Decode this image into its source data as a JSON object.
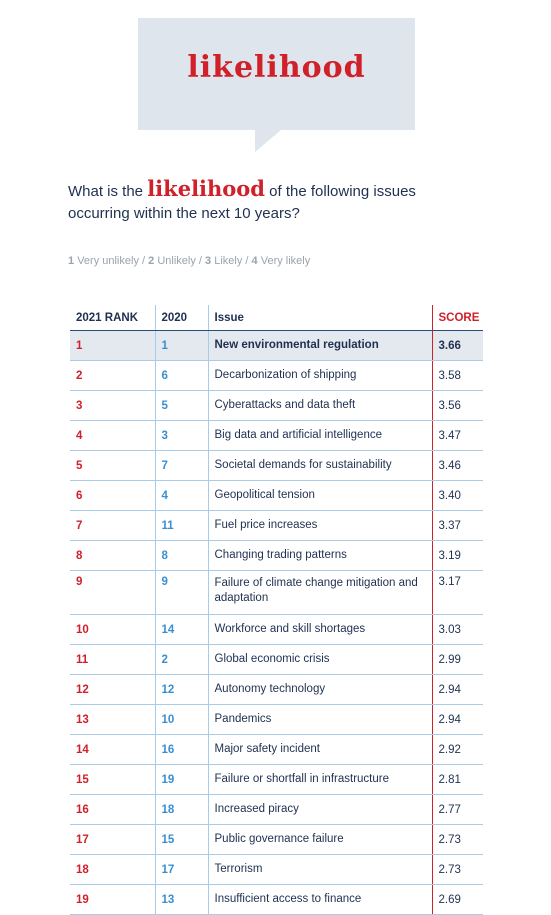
{
  "banner": {
    "title": "likelihood"
  },
  "question": {
    "before": "What is the",
    "highlight": "likelihood",
    "after": "of the following issues occurring within the next 10 years?"
  },
  "scale": {
    "separator": "/",
    "items": [
      {
        "num": "1",
        "label": "Very unlikely"
      },
      {
        "num": "2",
        "label": "Unlikely"
      },
      {
        "num": "3",
        "label": "Likely"
      },
      {
        "num": "4",
        "label": "Very likely"
      }
    ]
  },
  "table": {
    "header": [
      "2021 RANK",
      "2020",
      "Issue",
      "SCORE"
    ],
    "rows": [
      [
        "1",
        "1",
        "New environmental regulation",
        "3.66"
      ],
      [
        "2",
        "6",
        "Decarbonization of shipping",
        "3.58"
      ],
      [
        "3",
        "5",
        "Cyberattacks and data theft",
        "3.56"
      ],
      [
        "4",
        "3",
        "Big data and artificial intelligence",
        "3.47"
      ],
      [
        "5",
        "7",
        "Societal demands for sustainability",
        "3.46"
      ],
      [
        "6",
        "4",
        "Geopolitical tension",
        "3.40"
      ],
      [
        "7",
        "11",
        "Fuel price increases",
        "3.37"
      ],
      [
        "8",
        "8",
        "Changing trading patterns",
        "3.19"
      ],
      [
        "9",
        "9",
        "Failure of climate change mitigation and adaptation",
        "3.17"
      ],
      [
        "10",
        "14",
        "Workforce and skill shortages",
        "3.03"
      ],
      [
        "11",
        "2",
        "Global economic crisis",
        "2.99"
      ],
      [
        "12",
        "12",
        "Autonomy technology",
        "2.94"
      ],
      [
        "13",
        "10",
        "Pandemics",
        "2.94"
      ],
      [
        "14",
        "16",
        "Major safety incident",
        "2.92"
      ],
      [
        "15",
        "19",
        "Failure or shortfall in infrastructure",
        "2.81"
      ],
      [
        "16",
        "18",
        "Increased piracy",
        "2.77"
      ],
      [
        "17",
        "15",
        "Public governance failure",
        "2.73"
      ],
      [
        "18",
        "17",
        "Terrorism",
        "2.73"
      ],
      [
        "19",
        "13",
        "Insufficient access to finance",
        "2.69"
      ]
    ]
  }
}
